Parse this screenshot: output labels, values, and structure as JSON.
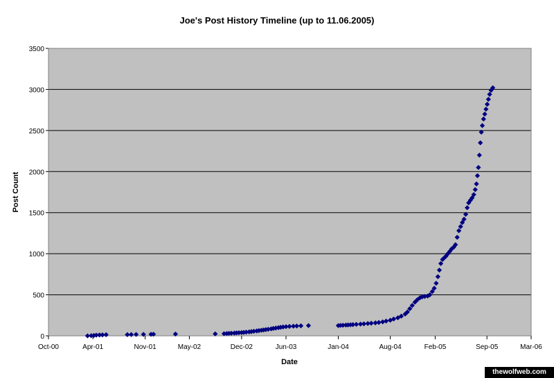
{
  "chart_data": {
    "type": "scatter",
    "title": "Joe's Post History Timeline (up to 11.06.2005)",
    "xlabel": "Date",
    "ylabel": "Post Count",
    "ylim": [
      0,
      3500
    ],
    "yticks": [
      0,
      500,
      1000,
      1500,
      2000,
      2500,
      3000,
      3500
    ],
    "xlim": [
      "2000-10-01",
      "2006-03-01"
    ],
    "xticks": [
      {
        "date": "2000-10-01",
        "label": "Oct-00"
      },
      {
        "date": "2001-04-01",
        "label": "Apr-01"
      },
      {
        "date": "2001-11-01",
        "label": "Nov-01"
      },
      {
        "date": "2002-05-01",
        "label": "May-02"
      },
      {
        "date": "2002-12-01",
        "label": "Dec-02"
      },
      {
        "date": "2003-06-01",
        "label": "Jun-03"
      },
      {
        "date": "2004-01-01",
        "label": "Jan-04"
      },
      {
        "date": "2004-08-01",
        "label": "Aug-04"
      },
      {
        "date": "2005-02-01",
        "label": "Feb-05"
      },
      {
        "date": "2005-09-01",
        "label": "Sep-05"
      },
      {
        "date": "2006-03-01",
        "label": "Mar-06"
      }
    ],
    "grid": "horizontal",
    "legend": "none",
    "plot_background": "#c0c0c0",
    "marker_color": "#000080",
    "marker": "diamond",
    "series": [
      {
        "points": [
          [
            "2001-03-10",
            0
          ],
          [
            "2001-03-25",
            2
          ],
          [
            "2001-04-05",
            5
          ],
          [
            "2001-04-15",
            8
          ],
          [
            "2001-04-28",
            10
          ],
          [
            "2001-05-10",
            12
          ],
          [
            "2001-05-25",
            14
          ],
          [
            "2001-08-20",
            15
          ],
          [
            "2001-09-05",
            16
          ],
          [
            "2001-09-25",
            17
          ],
          [
            "2001-10-25",
            18
          ],
          [
            "2001-11-25",
            19
          ],
          [
            "2001-12-05",
            20
          ],
          [
            "2002-03-05",
            22
          ],
          [
            "2002-08-15",
            24
          ],
          [
            "2002-09-20",
            26
          ],
          [
            "2002-10-01",
            28
          ],
          [
            "2002-10-10",
            30
          ],
          [
            "2002-10-20",
            32
          ],
          [
            "2002-11-01",
            34
          ],
          [
            "2002-11-10",
            36
          ],
          [
            "2002-11-20",
            38
          ],
          [
            "2002-12-01",
            40
          ],
          [
            "2002-12-10",
            42
          ],
          [
            "2002-12-20",
            45
          ],
          [
            "2003-01-01",
            48
          ],
          [
            "2003-01-10",
            52
          ],
          [
            "2003-01-20",
            56
          ],
          [
            "2003-02-01",
            60
          ],
          [
            "2003-02-10",
            64
          ],
          [
            "2003-02-20",
            68
          ],
          [
            "2003-03-01",
            72
          ],
          [
            "2003-03-10",
            76
          ],
          [
            "2003-03-20",
            80
          ],
          [
            "2003-04-01",
            85
          ],
          [
            "2003-04-10",
            90
          ],
          [
            "2003-04-20",
            95
          ],
          [
            "2003-05-01",
            100
          ],
          [
            "2003-05-10",
            104
          ],
          [
            "2003-05-20",
            108
          ],
          [
            "2003-06-01",
            112
          ],
          [
            "2003-06-15",
            115
          ],
          [
            "2003-07-01",
            118
          ],
          [
            "2003-07-15",
            120
          ],
          [
            "2003-08-01",
            122
          ],
          [
            "2003-09-01",
            125
          ],
          [
            "2004-01-01",
            125
          ],
          [
            "2004-01-10",
            127
          ],
          [
            "2004-01-20",
            129
          ],
          [
            "2004-02-01",
            131
          ],
          [
            "2004-02-10",
            133
          ],
          [
            "2004-02-20",
            135
          ],
          [
            "2004-03-01",
            137
          ],
          [
            "2004-03-15",
            140
          ],
          [
            "2004-04-01",
            143
          ],
          [
            "2004-04-15",
            146
          ],
          [
            "2004-05-01",
            150
          ],
          [
            "2004-05-15",
            154
          ],
          [
            "2004-06-01",
            158
          ],
          [
            "2004-06-15",
            163
          ],
          [
            "2004-07-01",
            170
          ],
          [
            "2004-07-15",
            180
          ],
          [
            "2004-08-01",
            190
          ],
          [
            "2004-08-15",
            205
          ],
          [
            "2004-09-01",
            220
          ],
          [
            "2004-09-15",
            240
          ],
          [
            "2004-10-01",
            265
          ],
          [
            "2004-10-10",
            290
          ],
          [
            "2004-10-20",
            330
          ],
          [
            "2004-10-30",
            370
          ],
          [
            "2004-11-10",
            410
          ],
          [
            "2004-11-20",
            440
          ],
          [
            "2004-12-01",
            465
          ],
          [
            "2004-12-10",
            475
          ],
          [
            "2004-12-20",
            480
          ],
          [
            "2005-01-01",
            485
          ],
          [
            "2005-01-10",
            500
          ],
          [
            "2005-01-20",
            540
          ],
          [
            "2005-01-28",
            580
          ],
          [
            "2005-02-05",
            640
          ],
          [
            "2005-02-12",
            720
          ],
          [
            "2005-02-18",
            800
          ],
          [
            "2005-02-24",
            880
          ],
          [
            "2005-03-03",
            930
          ],
          [
            "2005-03-10",
            950
          ],
          [
            "2005-03-17",
            970
          ],
          [
            "2005-03-25",
            1000
          ],
          [
            "2005-04-02",
            1030
          ],
          [
            "2005-04-10",
            1060
          ],
          [
            "2005-04-18",
            1080
          ],
          [
            "2005-04-25",
            1110
          ],
          [
            "2005-05-02",
            1200
          ],
          [
            "2005-05-09",
            1280
          ],
          [
            "2005-05-16",
            1330
          ],
          [
            "2005-05-23",
            1380
          ],
          [
            "2005-05-30",
            1420
          ],
          [
            "2005-06-06",
            1480
          ],
          [
            "2005-06-12",
            1560
          ],
          [
            "2005-06-18",
            1620
          ],
          [
            "2005-06-25",
            1650
          ],
          [
            "2005-07-02",
            1680
          ],
          [
            "2005-07-09",
            1720
          ],
          [
            "2005-07-15",
            1780
          ],
          [
            "2005-07-20",
            1850
          ],
          [
            "2005-07-24",
            1950
          ],
          [
            "2005-07-28",
            2050
          ],
          [
            "2005-08-01",
            2200
          ],
          [
            "2005-08-05",
            2350
          ],
          [
            "2005-08-09",
            2480
          ],
          [
            "2005-08-13",
            2560
          ],
          [
            "2005-08-18",
            2640
          ],
          [
            "2005-08-23",
            2700
          ],
          [
            "2005-08-28",
            2760
          ],
          [
            "2005-09-02",
            2820
          ],
          [
            "2005-09-07",
            2880
          ],
          [
            "2005-09-12",
            2940
          ],
          [
            "2005-09-18",
            2990
          ],
          [
            "2005-09-25",
            3020
          ]
        ]
      }
    ]
  },
  "watermark": "thewolfweb.com"
}
